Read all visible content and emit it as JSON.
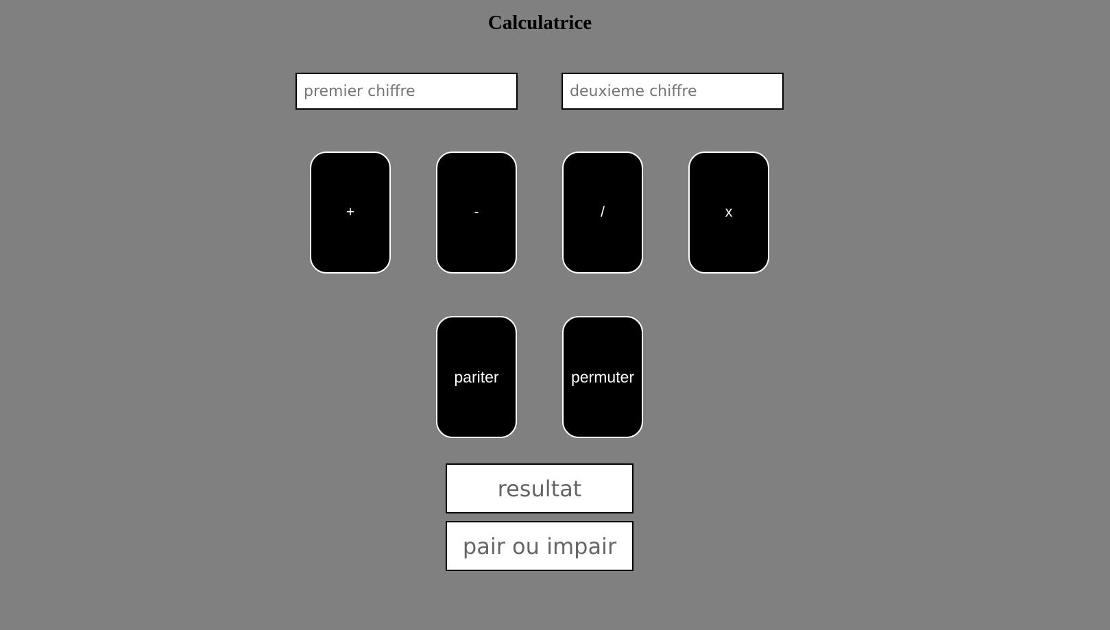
{
  "page": {
    "title": "Calculatrice",
    "background_color": "#808080"
  },
  "inputs": {
    "first": {
      "placeholder": "premier chiffre",
      "value": ""
    },
    "second": {
      "placeholder": "deuxieme chiffre",
      "value": ""
    }
  },
  "operations": {
    "add_label": "+",
    "subtract_label": "-",
    "divide_label": "/",
    "multiply_label": "x",
    "parity_label": "pariter",
    "swap_label": "permuter"
  },
  "outputs": {
    "result_placeholder": "resultat",
    "parity_placeholder": "pair ou impair"
  },
  "colors": {
    "button_bg": "#000000",
    "button_text": "#ffffff",
    "button_border": "#ffffff"
  }
}
